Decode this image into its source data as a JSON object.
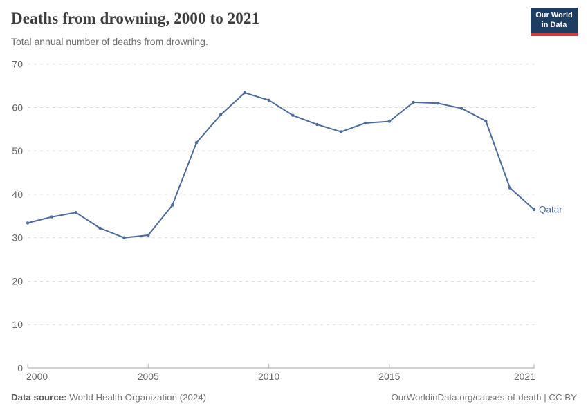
{
  "header": {
    "title": "Deaths from drowning, 2000 to 2021",
    "subtitle": "Total annual number of deaths from drowning.",
    "logo": {
      "line1": "Our World",
      "line2": "in Data"
    }
  },
  "footer": {
    "source_label": "Data source:",
    "source_value": "World Health Organization (2024)",
    "credit": "OurWorldinData.org/causes-of-death | CC BY"
  },
  "colors": {
    "line": "#4c6a9c",
    "grid": "#dcdcdc",
    "axis": "#a3a3a3",
    "tick_mark": "#bababa",
    "tick_text": "#666666",
    "title": "#3d3d3d",
    "subtitle": "#6e6e6e",
    "footer_text": "#757575",
    "logo_bg": "#1d3d63",
    "logo_stripe": "#d73a3a"
  },
  "chart_data": {
    "type": "line",
    "title": "Deaths from drowning, 2000 to 2021",
    "subtitle": "Total annual number of deaths from drowning.",
    "x": [
      2000,
      2001,
      2002,
      2003,
      2004,
      2005,
      2006,
      2007,
      2008,
      2009,
      2010,
      2011,
      2012,
      2013,
      2014,
      2015,
      2016,
      2017,
      2018,
      2019,
      2020,
      2021
    ],
    "series": [
      {
        "name": "Qatar",
        "color": "#4c6a9c",
        "values": [
          33.4,
          34.8,
          35.8,
          32.2,
          30.0,
          30.6,
          37.5,
          51.9,
          58.3,
          63.4,
          61.7,
          58.2,
          56.1,
          54.4,
          56.4,
          56.8,
          61.2,
          61.0,
          59.8,
          56.9,
          41.5,
          36.5
        ]
      }
    ],
    "xlabel": "",
    "ylabel": "",
    "ylim": [
      0,
      70
    ],
    "yticks": [
      0,
      10,
      20,
      30,
      40,
      50,
      60,
      70
    ],
    "xticks": [
      2000,
      2005,
      2010,
      2015,
      2021
    ],
    "grid": "horizontal-dashed",
    "legend": "end-of-line-label",
    "markers": true
  }
}
